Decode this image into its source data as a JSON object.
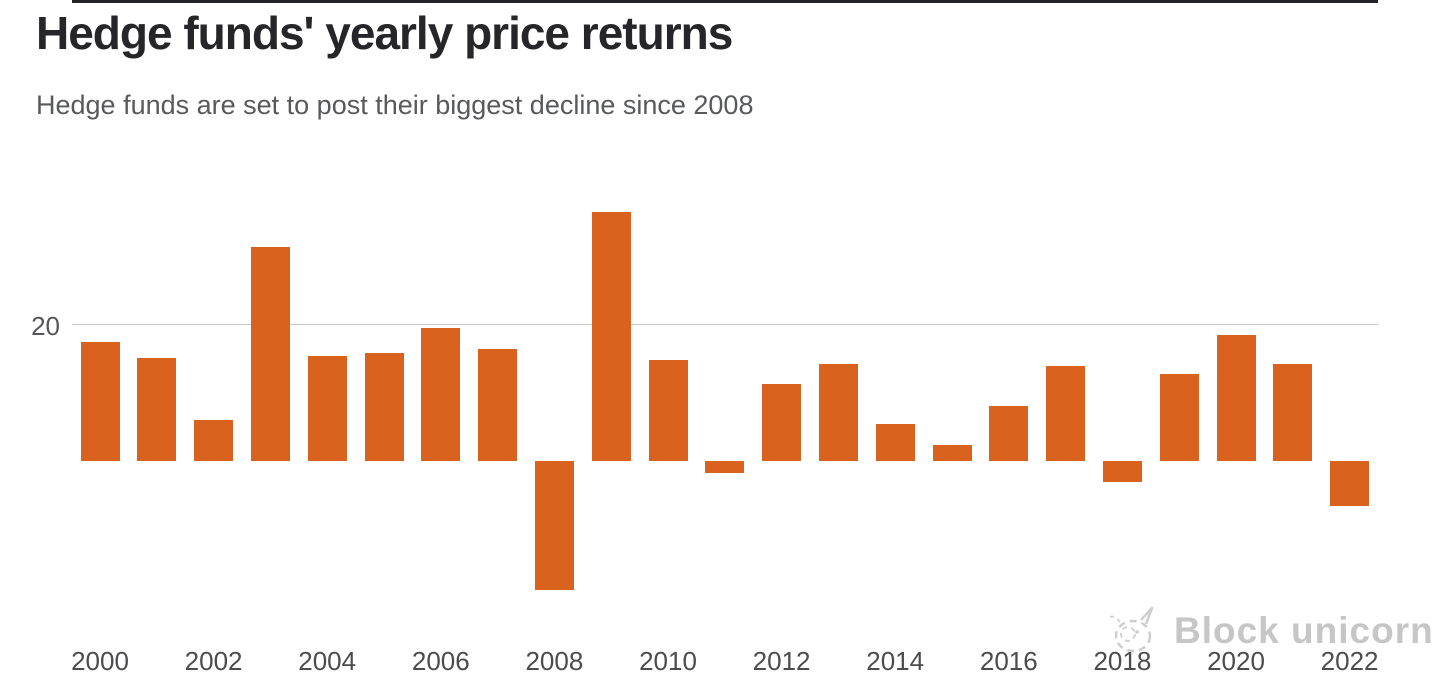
{
  "header": {
    "title": "Hedge funds' yearly price returns",
    "subtitle": "Hedge funds are set to post their biggest decline since 2008"
  },
  "watermark": {
    "label": "Block unicorn",
    "icon": "unicorn-doodle-icon",
    "color": "#c4c4c4"
  },
  "chart_data": {
    "type": "bar",
    "title": "Hedge funds' yearly price returns",
    "subtitle": "Hedge funds are set to post their biggest decline since 2008",
    "categories": [
      2000,
      2001,
      2002,
      2003,
      2004,
      2005,
      2006,
      2007,
      2008,
      2009,
      2010,
      2011,
      2012,
      2013,
      2014,
      2015,
      2016,
      2017,
      2018,
      2019,
      2020,
      2021,
      2022
    ],
    "values": [
      17.4,
      15.0,
      6.0,
      31.2,
      15.4,
      15.7,
      19.4,
      16.3,
      -18.9,
      36.3,
      14.8,
      -1.8,
      11.2,
      14.2,
      5.4,
      2.4,
      8.1,
      13.8,
      -3.1,
      12.7,
      18.4,
      14.2,
      -6.6
    ],
    "unit": "percent",
    "xlabel": "",
    "ylabel": "",
    "x_tick_labels": [
      "2000",
      "2002",
      "2004",
      "2006",
      "2008",
      "2010",
      "2012",
      "2014",
      "2016",
      "2018",
      "2020",
      "2022"
    ],
    "y_tick_labels": [
      "20"
    ],
    "y_gridlines": [
      20
    ],
    "ylim": [
      -22,
      38
    ],
    "grid": "horizontal-single",
    "legend": "none",
    "bar_color": "#d9621f",
    "baseline_color": "#232328",
    "gridline_color": "#c9c9c9"
  }
}
